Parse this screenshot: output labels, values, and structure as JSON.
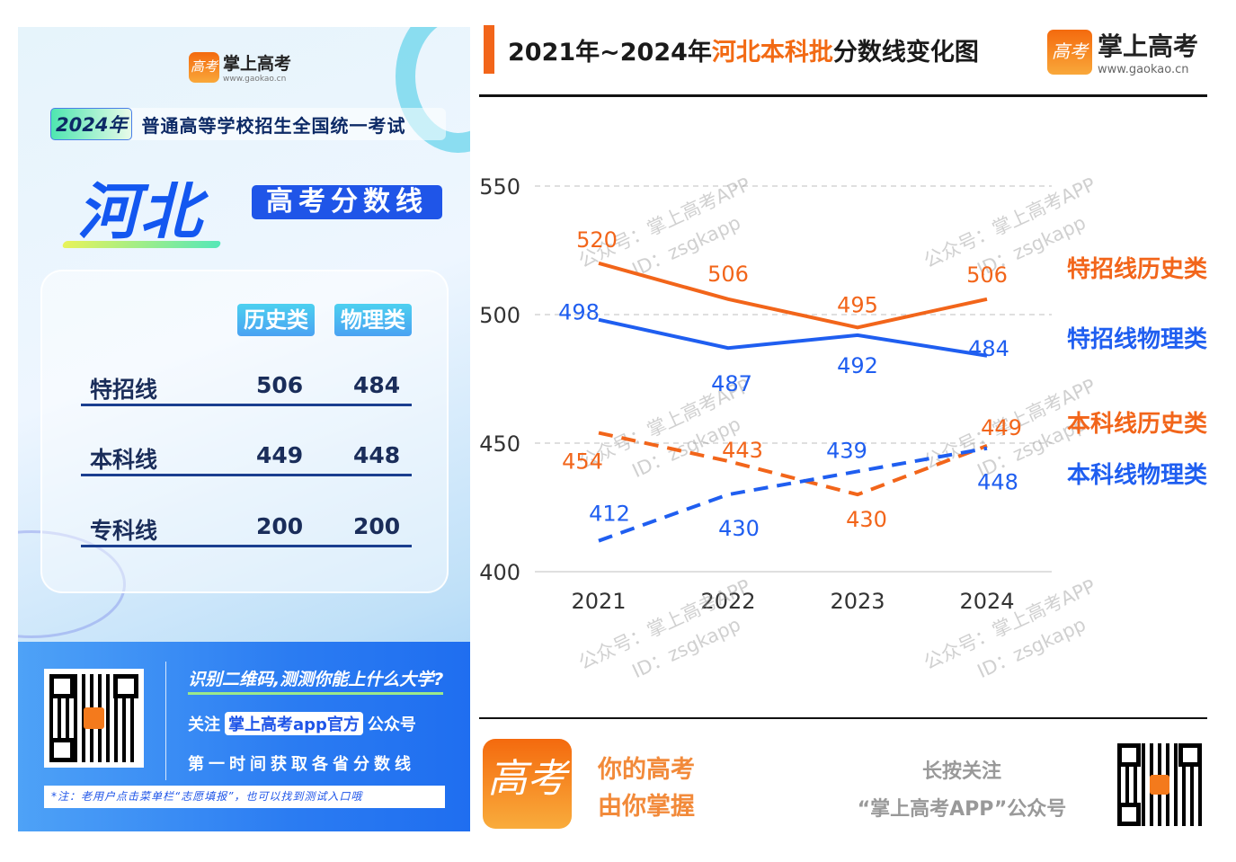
{
  "left_panel": {
    "logo": {
      "name": "掌上高考",
      "url": "www.gaokao.cn",
      "icon": "gaokao-logo-icon",
      "icon_text": "高考"
    },
    "exam_year": "2024年",
    "exam_title": "普通高等学校招生全国统一考试",
    "province": "河北",
    "tag": "高考分数线",
    "table": {
      "headers": [
        "历史类",
        "物理类"
      ],
      "rows": [
        {
          "label": "特招线",
          "history": "506",
          "physics": "484"
        },
        {
          "label": "本科线",
          "history": "449",
          "physics": "448"
        },
        {
          "label": "专科线",
          "history": "200",
          "physics": "200"
        }
      ]
    },
    "promo": {
      "headline": "识别二维码,测测你能上什么大学?",
      "follow_prefix": "关注",
      "follow_account": "掌上高考app官方",
      "follow_suffix": "公众号",
      "line3": "第一时间获取各省分数线",
      "note": "*注：老用户点击菜单栏“志愿填报”，也可以找到测试入口哦"
    }
  },
  "right_panel": {
    "title_prefix": "2021年~2024年",
    "title_highlight": "河北本科批",
    "title_suffix": "分数线变化图",
    "logo": {
      "name": "掌上高考",
      "url": "www.gaokao.cn",
      "icon_text": "高考"
    },
    "footer": {
      "slogan1": "你的高考",
      "slogan2": "由你掌握",
      "follow1": "长按关注",
      "follow2": "“掌上高考APP”公众号",
      "icon_text": "高考"
    },
    "watermark": {
      "line1": "公众号：掌上高考APP",
      "line2": "ID：zsgkapp"
    }
  },
  "colors": {
    "orange": "#f2651a",
    "blue": "#1f5ef0",
    "accent_blue": "#1f55e8"
  },
  "chart_data": {
    "type": "line",
    "categories": [
      "2021",
      "2022",
      "2023",
      "2024"
    ],
    "ylim": [
      400,
      550
    ],
    "yticks": [
      400,
      450,
      500,
      550
    ],
    "grid": "horizontal dashed",
    "legend": "right",
    "series": [
      {
        "name": "特招线历史类",
        "values": [
          520,
          506,
          495,
          506
        ],
        "color": "#f2651a",
        "style": "solid"
      },
      {
        "name": "特招线物理类",
        "values": [
          498,
          487,
          492,
          484
        ],
        "color": "#1f5ef0",
        "style": "solid"
      },
      {
        "name": "本科线历史类",
        "values": [
          454,
          443,
          430,
          449
        ],
        "color": "#f2651a",
        "style": "dashed"
      },
      {
        "name": "本科线物理类",
        "values": [
          412,
          430,
          439,
          448
        ],
        "color": "#1f5ef0",
        "style": "dashed"
      }
    ]
  }
}
